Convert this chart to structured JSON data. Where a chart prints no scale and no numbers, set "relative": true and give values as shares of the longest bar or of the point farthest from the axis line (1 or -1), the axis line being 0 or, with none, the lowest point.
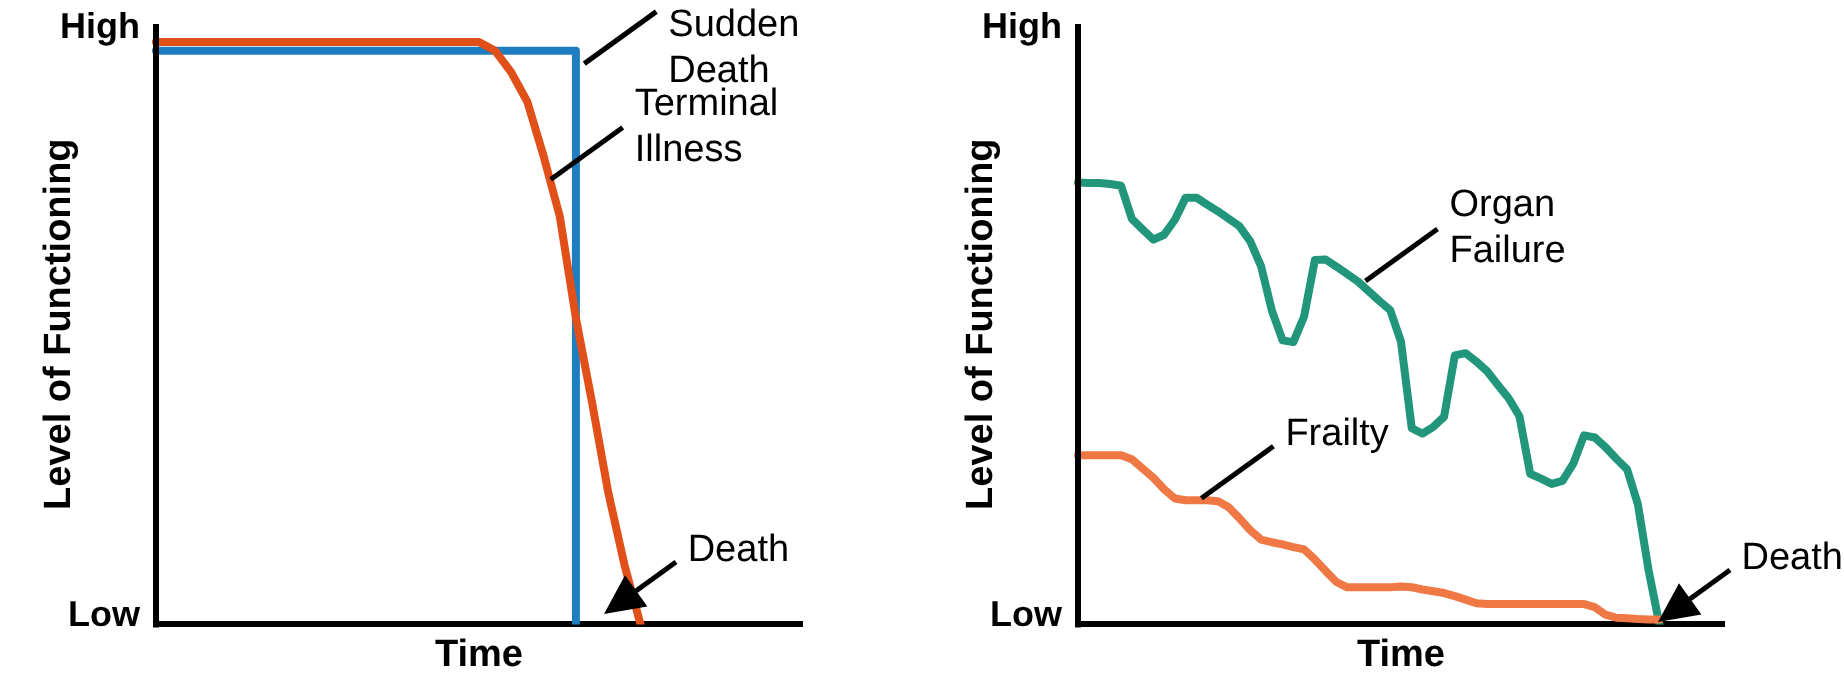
{
  "chart_data": [
    {
      "type": "line",
      "xlabel": "Time",
      "ylabel": "Level of Functioning",
      "categories": [
        null,
        null,
        null,
        null,
        null,
        null,
        null,
        null,
        null,
        null,
        null,
        null,
        null,
        null,
        null,
        null,
        null,
        null,
        null,
        null,
        null,
        null,
        null,
        null,
        null,
        null,
        null,
        null,
        null,
        null,
        null,
        null,
        null,
        null,
        null,
        null,
        null,
        null,
        null,
        null,
        null
      ],
      "relative": true,
      "tick_labels": false,
      "grid": false,
      "marker": "none",
      "line_style": "solid",
      "series": [
        {
          "type": "step",
          "color": "#1f7ec2",
          "values": [
            0.985,
            0.985,
            0.985,
            0.985,
            0.985,
            0.985,
            0.985,
            0.985,
            0.985,
            0.985,
            0.985,
            0.985,
            0.985,
            0.985,
            0.985,
            0.985,
            0.985,
            0.985,
            0.985,
            0.985,
            0.985,
            0.985,
            0.985,
            0.985,
            0.985,
            0.985,
            0,
            null,
            null,
            null,
            null,
            null,
            null,
            null,
            null,
            null,
            null,
            null,
            null,
            null,
            null
          ]
        },
        {
          "color": "#e2501a",
          "values": [
            1,
            1,
            1,
            1,
            1,
            1,
            1,
            1,
            1,
            1,
            1,
            1,
            1,
            1,
            1,
            1,
            1,
            1,
            1,
            1,
            1,
            0.985,
            0.948,
            0.897,
            0.804,
            0.701,
            0.526,
            0.381,
            0.227,
            0.103,
            0,
            null,
            null,
            null,
            null,
            null,
            null,
            null,
            null,
            null,
            null
          ]
        }
      ],
      "annotations": [
        "High",
        "Low",
        "Sudden Death",
        "Terminal Illness",
        "Death"
      ]
    },
    {
      "type": "line",
      "xlabel": "Time",
      "ylabel": "Level of Functioning",
      "categories": [
        null,
        null,
        null,
        null,
        null,
        null,
        null,
        null,
        null,
        null,
        null,
        null,
        null,
        null,
        null,
        null,
        null,
        null,
        null,
        null,
        null,
        null,
        null,
        null,
        null,
        null,
        null,
        null,
        null,
        null,
        null,
        null,
        null,
        null,
        null,
        null,
        null,
        null,
        null,
        null,
        null,
        null,
        null,
        null,
        null,
        null,
        null,
        null,
        null,
        null,
        null,
        null,
        null,
        null,
        null,
        null,
        null,
        null,
        null,
        null,
        null
      ],
      "relative": true,
      "tick_labels": false,
      "grid": false,
      "marker": "none",
      "line_style": "solid",
      "series": [
        {
          "color": "#21967a",
          "values": [
            1,
            0.999,
            0.999,
            0.997,
            0.993,
            0.918,
            0.894,
            0.871,
            0.882,
            0.916,
            0.966,
            0.966,
            0.95,
            0.935,
            0.918,
            0.901,
            0.867,
            0.811,
            0.711,
            0.643,
            0.639,
            0.697,
            0.825,
            0.826,
            0.81,
            0.793,
            0.776,
            0.754,
            0.732,
            0.711,
            0.64,
            0.444,
            0.432,
            0.447,
            0.47,
            0.609,
            0.614,
            0.595,
            0.573,
            0.542,
            0.512,
            0.471,
            0.341,
            0.33,
            0.318,
            0.325,
            0.364,
            0.428,
            0.423,
            0.401,
            0.375,
            0.351,
            0.272,
            0.122,
            0,
            null,
            null,
            null,
            null,
            null,
            null
          ]
        },
        {
          "color": "#f07844",
          "values": [
            0.383,
            0.383,
            0.383,
            0.383,
            0.383,
            0.374,
            0.353,
            0.332,
            0.306,
            0.285,
            0.281,
            0.281,
            0.281,
            0.279,
            0.265,
            0.24,
            0.213,
            0.192,
            0.186,
            0.181,
            0.175,
            0.17,
            0.147,
            0.121,
            0.096,
            0.084,
            0.084,
            0.084,
            0.084,
            0.084,
            0.086,
            0.084,
            0.079,
            0.075,
            0.071,
            0.064,
            0.056,
            0.048,
            0.046,
            0.046,
            0.046,
            0.046,
            0.046,
            0.046,
            0.046,
            0.046,
            0.046,
            0.046,
            0.039,
            0.022,
            0.015,
            0.014,
            0.012,
            0.011,
            0.011,
            null,
            null,
            null,
            null,
            null,
            null
          ]
        }
      ],
      "annotations": [
        "High",
        "Low",
        "Organ Failure",
        "Frailty",
        "Death"
      ]
    }
  ]
}
